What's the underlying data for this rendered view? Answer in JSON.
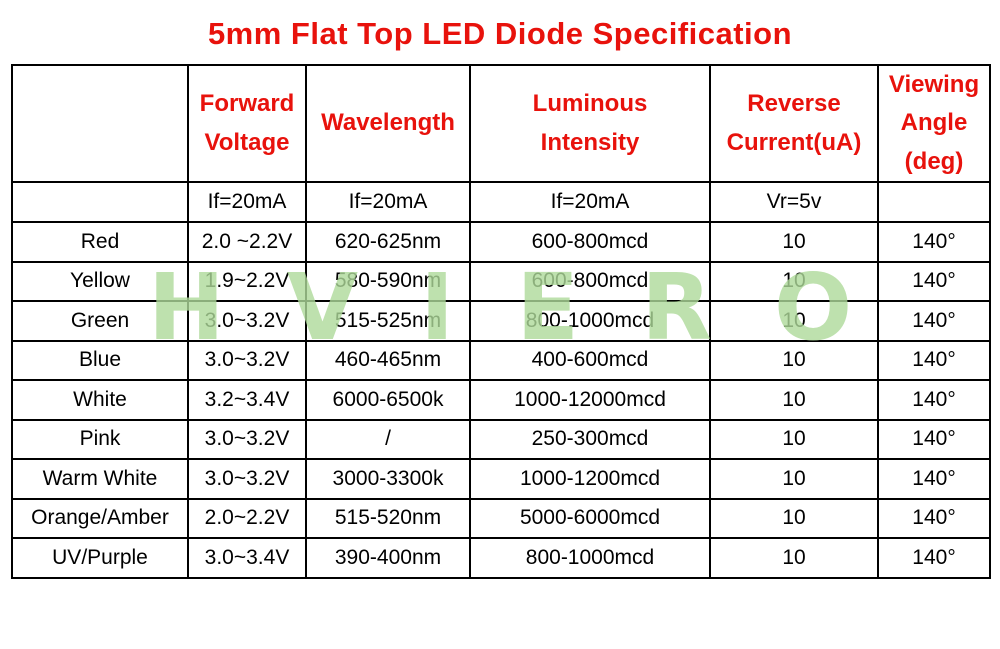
{
  "title": "5mm Flat Top LED Diode Specification",
  "watermark": "HVIERO",
  "colors": {
    "accent": "#e8120c",
    "text": "#000000",
    "border": "#000000",
    "watermark": "#aeda9a"
  },
  "table": {
    "header_row1": [
      "",
      "Forward\nVoltage",
      "Wavelength",
      "Luminous\nIntensity",
      "Reverse\nCurrent(uA)",
      "Viewing\nAngle\n(deg)"
    ],
    "header_row2": [
      "",
      "If=20mA",
      "If=20mA",
      "If=20mA",
      "Vr=5v",
      ""
    ],
    "rows": [
      [
        "Red",
        "2.0 ~2.2V",
        "620-625nm",
        "600-800mcd",
        "10",
        "140°"
      ],
      [
        "Yellow",
        "1.9~2.2V",
        "580-590nm",
        "600-800mcd",
        "10",
        "140°"
      ],
      [
        "Green",
        "3.0~3.2V",
        "515-525nm",
        "800-1000mcd",
        "10",
        "140°"
      ],
      [
        "Blue",
        "3.0~3.2V",
        "460-465nm",
        "400-600mcd",
        "10",
        "140°"
      ],
      [
        "White",
        "3.2~3.4V",
        "6000-6500k",
        "1000-12000mcd",
        "10",
        "140°"
      ],
      [
        "Pink",
        "3.0~3.2V",
        "/",
        "250-300mcd",
        "10",
        "140°"
      ],
      [
        "Warm White",
        "3.0~3.2V",
        "3000-3300k",
        "1000-1200mcd",
        "10",
        "140°"
      ],
      [
        "Orange/Amber",
        "2.0~2.2V",
        "515-520nm",
        "5000-6000mcd",
        "10",
        "140°"
      ],
      [
        "UV/Purple",
        "3.0~3.4V",
        "390-400nm",
        "800-1000mcd",
        "10",
        "140°"
      ]
    ]
  }
}
